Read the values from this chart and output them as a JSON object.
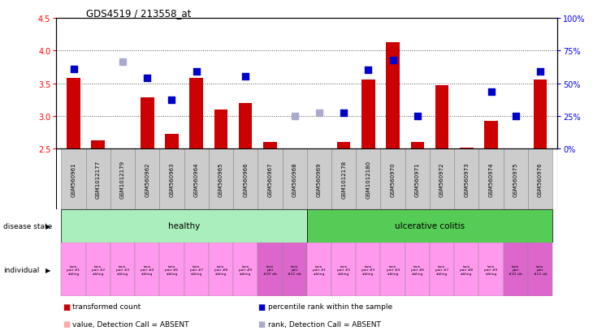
{
  "title": "GDS4519 / 213558_at",
  "samples": [
    "GSM560961",
    "GSM1012177",
    "GSM1012179",
    "GSM560962",
    "GSM560963",
    "GSM560964",
    "GSM560965",
    "GSM560966",
    "GSM560967",
    "GSM560968",
    "GSM560969",
    "GSM1012178",
    "GSM1012180",
    "GSM560970",
    "GSM560971",
    "GSM560972",
    "GSM560973",
    "GSM560974",
    "GSM560975",
    "GSM560976"
  ],
  "bar_values": [
    3.58,
    2.63,
    null,
    3.28,
    2.73,
    3.58,
    3.1,
    3.2,
    2.6,
    null,
    null,
    2.6,
    3.55,
    4.12,
    2.6,
    3.47,
    2.52,
    2.92,
    null,
    3.55
  ],
  "bar_absent": [
    false,
    false,
    true,
    false,
    false,
    false,
    false,
    false,
    false,
    true,
    true,
    false,
    false,
    false,
    false,
    false,
    false,
    false,
    true,
    false
  ],
  "rank_values": [
    3.72,
    null,
    3.83,
    3.58,
    3.25,
    3.68,
    null,
    3.6,
    null,
    3.0,
    3.05,
    3.05,
    3.7,
    3.85,
    3.0,
    null,
    null,
    3.37,
    3.0,
    3.68
  ],
  "dot_absent_indices": [
    2,
    9,
    10,
    15,
    16
  ],
  "ylim": [
    2.5,
    4.5
  ],
  "y2lim": [
    0,
    100
  ],
  "yticks": [
    2.5,
    3.0,
    3.5,
    4.0,
    4.5
  ],
  "y2ticks": [
    0,
    25,
    50,
    75,
    100
  ],
  "bar_color": "#cc0000",
  "bar_absent_color": "#ffaaaa",
  "dot_color": "#0000cc",
  "dot_absent_color": "#aaaacc",
  "healthy_color": "#aaeebb",
  "uc_color": "#55cc55",
  "individual_color_light": "#ff99ee",
  "individual_color_dark": "#dd66cc",
  "sample_box_color": "#cccccc",
  "grid_color": "#555555",
  "bg_color": "#ffffff",
  "bar_width": 0.55,
  "dot_size": 28,
  "individual_labels": [
    "twin\npair #1\nsibling",
    "twin\npair #2\nsibling",
    "twin\npair #3\nsibling",
    "twin\npair #4\nsibling",
    "twin\npair #6\nsibling",
    "twin\npair #7\nsibling",
    "twin\npair #8\nsibling",
    "twin\npair #9\nsibling",
    "twin\npair\n#10 sib",
    "twin\npair\n#12 sib",
    "twin\npair #1\nsibling",
    "twin\npair #2\nsibling",
    "twin\npair #3\nsibling",
    "twin\npair #4\nsibling",
    "twin\npair #6\nsibling",
    "twin\npair #7\nsibling",
    "twin\npair #8\nsibling",
    "twin\npair #9\nsibling",
    "twin\npair\n#10 sib",
    "twin\npair\n#12 sib"
  ],
  "healthy_count": 10,
  "uc_count": 10
}
